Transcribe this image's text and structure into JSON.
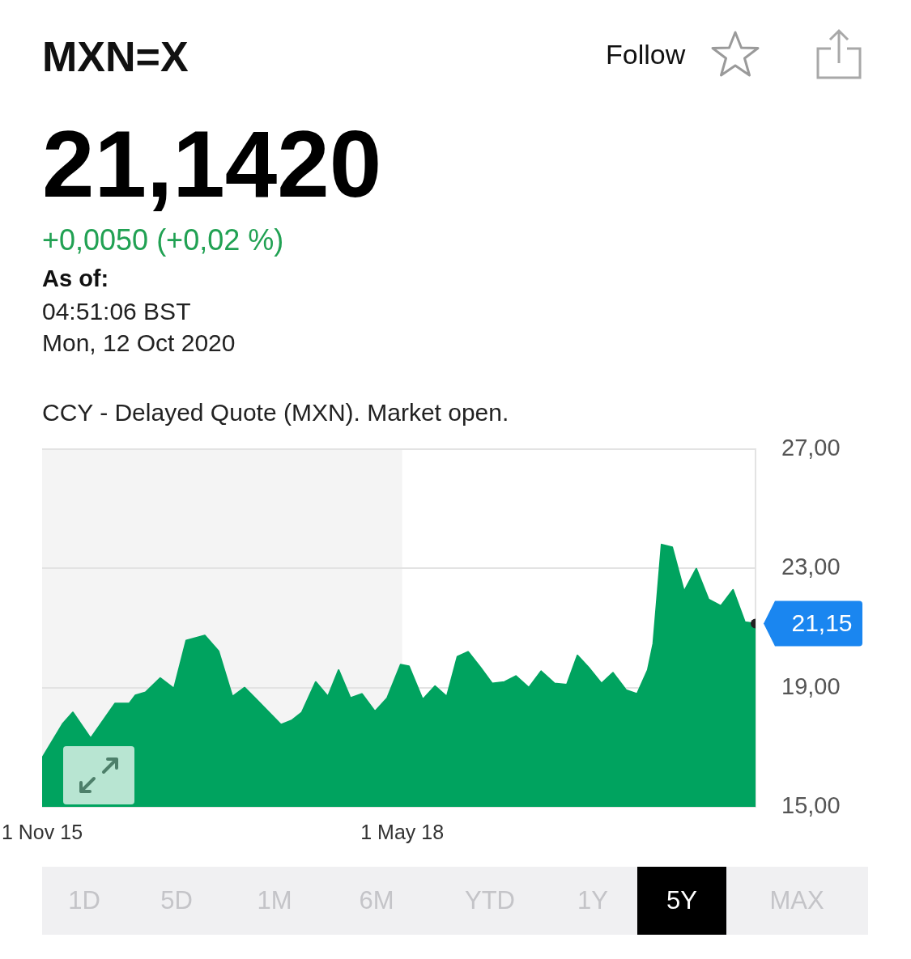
{
  "chart_data": {
    "type": "area",
    "title": "MXN=X",
    "x": [
      "2015-11-01",
      "2015-12-24",
      "2016-01-18",
      "2016-03-03",
      "2016-05-04",
      "2016-06-09",
      "2016-06-24",
      "2016-07-20",
      "2016-08-26",
      "2016-09-30",
      "2016-10-31",
      "2016-12-17",
      "2017-01-21",
      "2017-02-25",
      "2017-03-28",
      "2017-04-27",
      "2017-06-28",
      "2017-07-25",
      "2017-08-20",
      "2017-09-24",
      "2017-10-25",
      "2017-11-21",
      "2017-12-21",
      "2018-01-19",
      "2018-02-21",
      "2018-03-24",
      "2018-04-27",
      "2018-05-18",
      "2018-06-22",
      "2018-07-23",
      "2018-08-22",
      "2018-09-18",
      "2018-10-15",
      "2018-11-15",
      "2018-12-15",
      "2019-01-15",
      "2019-02-13",
      "2019-03-18",
      "2019-04-18",
      "2019-05-22",
      "2019-06-22",
      "2019-07-19",
      "2019-08-16",
      "2019-09-18",
      "2019-10-17",
      "2019-11-19",
      "2019-12-17",
      "2020-01-13",
      "2020-01-27",
      "2020-02-17",
      "2020-03-15",
      "2020-04-14",
      "2020-05-15",
      "2020-06-15",
      "2020-07-16",
      "2020-08-16",
      "2020-09-15",
      "2020-10-12"
    ],
    "series": [
      {
        "color": "#00a35f",
        "values": [
          16.64,
          17.8,
          18.17,
          17.3,
          18.47,
          18.47,
          18.74,
          18.84,
          19.32,
          18.97,
          20.58,
          20.75,
          20.22,
          18.7,
          19.0,
          18.6,
          17.76,
          17.9,
          18.17,
          19.19,
          18.7,
          19.59,
          18.65,
          18.79,
          18.2,
          18.65,
          19.77,
          19.72,
          18.6,
          19.05,
          18.7,
          20.04,
          20.2,
          19.68,
          19.14,
          19.19,
          19.39,
          19.0,
          19.55,
          19.14,
          19.1,
          20.08,
          19.68,
          19.14,
          19.5,
          18.92,
          18.79,
          19.59,
          20.48,
          23.8,
          23.71,
          22.23,
          22.99,
          21.96,
          21.74,
          22.28,
          21.2,
          21.15
        ]
      },
      {
        "type": "scatter",
        "x": [
          "2020-10-12"
        ],
        "values": [
          21.15
        ],
        "color": "#222222"
      }
    ],
    "xlim": [
      "2015-11-01",
      "2020-10-12"
    ],
    "xticks": [
      {
        "value": "2015-11-01",
        "label": "1 Nov 15"
      },
      {
        "value": "2018-05-01",
        "label": "1 May 18"
      }
    ],
    "ylim": [
      15,
      27
    ],
    "yticks": [
      {
        "value": 15,
        "label": "15,00"
      },
      {
        "value": 19,
        "label": "19,00"
      },
      {
        "value": 23,
        "label": "23,00"
      },
      {
        "value": 27,
        "label": "27,00"
      }
    ],
    "grid": "y",
    "bands": [
      {
        "axis": "x",
        "from": "2015-11-01",
        "to": "2018-05-01",
        "color": "#f4f4f4"
      }
    ],
    "annotations": [
      "21,1420",
      "+0,0050 (+0,02 %)",
      "As of:",
      "04:51:06 BST",
      "Mon, 12 Oct 2020",
      "CCY - Delayed Quote (MXN). Market open.",
      "Follow",
      "1D",
      "5D",
      "1M",
      "6M",
      "YTD",
      "1Y",
      "5Y",
      "MAX",
      {
        "text": "21,15",
        "x": "2020-10-12",
        "y": 21.15
      }
    ]
  }
}
